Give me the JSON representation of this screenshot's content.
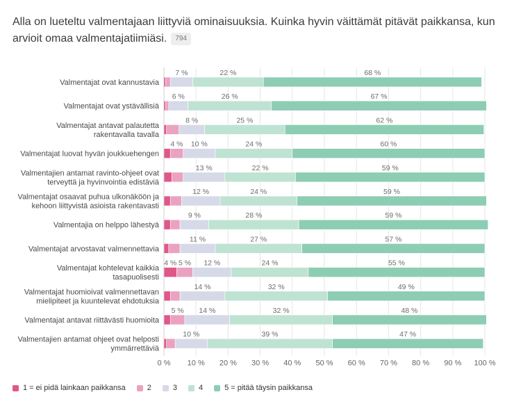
{
  "title": "Alla on lueteltu valmentajaan liittyviä ominaisuuksia. Kuinka hyvin väittämät pitävät paikkansa, kun arvioit omaa valmentajatiimiäsi.",
  "response_count": "794",
  "colors": [
    "#e0578a",
    "#eba2c0",
    "#d6dae8",
    "#bfe3d3",
    "#8dcdb3"
  ],
  "legend": [
    "1 = ei pidä lainkaan paikkansa",
    "2",
    "3",
    "4",
    "5 = pitää täysin paikkansa"
  ],
  "chart_data": {
    "type": "bar",
    "orientation": "horizontal",
    "stacked": "percent",
    "xlim": [
      0,
      100
    ],
    "x_ticks": [
      "0 %",
      "10 %",
      "20 %",
      "30 %",
      "40 %",
      "50 %",
      "60 %",
      "70 %",
      "80 %",
      "90 %",
      "100 %"
    ],
    "categories": [
      [
        "Valmentajat ovat kannustavia"
      ],
      [
        "Valmentajat ovat ystävällisiä"
      ],
      [
        "Valmentajat antavat palautetta",
        "rakentavalla tavalla"
      ],
      [
        "Valmentajat luovat hyvän joukkuehengen"
      ],
      [
        "Valmentajien antamat ravinto-ohjeet ovat",
        "terveyttä ja hyvinvointia edistäviä"
      ],
      [
        "Valmentajat osaavat puhua ulkonäköön ja",
        "kehoon liittyvistä asioista rakentavasti"
      ],
      [
        "Valmentajia on helppo lähestyä"
      ],
      [
        "Valmentajat arvostavat valmennettavia"
      ],
      [
        "Valmentajat kohtelevat kaikkia",
        "tasapuolisesti"
      ],
      [
        "Valmentajat huomioivat valmennettavan",
        "mielipiteet ja kuuntelevat ehdotuksia"
      ],
      [
        "Valmentajat antavat riittävästi huomioita"
      ],
      [
        "Valmentajien antamat ohjeet ovat helposti",
        "ymmärrettäviä"
      ]
    ],
    "series": [
      {
        "name": "1 = ei pidä lainkaan paikkansa",
        "values": [
          0.5,
          0.5,
          0.8,
          2.0,
          2.5,
          2.0,
          2.0,
          1.5,
          4.0,
          2.0,
          2.0,
          0.8
        ]
      },
      {
        "name": "2",
        "values": [
          1.5,
          1.0,
          3.9,
          4.0,
          3.5,
          3.5,
          3.0,
          3.5,
          5.0,
          3.0,
          4.5,
          2.7
        ]
      },
      {
        "name": "3",
        "values": [
          7,
          6,
          8,
          10,
          13,
          12,
          9,
          11,
          12,
          14,
          14,
          10
        ]
      },
      {
        "name": "4",
        "values": [
          22,
          26,
          25,
          24,
          22,
          24,
          28,
          27,
          24,
          32,
          32,
          39
        ]
      },
      {
        "name": "5 = pitää täysin paikkansa",
        "values": [
          68,
          67,
          62,
          60,
          59,
          59,
          59,
          57,
          55,
          49,
          48,
          47
        ]
      }
    ],
    "data_labels": [
      [
        "",
        "",
        "7 %",
        "22 %",
        "68 %"
      ],
      [
        "",
        "",
        "6 %",
        "26 %",
        "67 %"
      ],
      [
        "",
        "",
        "8 %",
        "25 %",
        "62 %"
      ],
      [
        "",
        "4 %",
        "10 %",
        "24 %",
        "60 %"
      ],
      [
        "",
        "",
        "13 %",
        "22 %",
        "59 %"
      ],
      [
        "",
        "",
        "12 %",
        "24 %",
        "59 %"
      ],
      [
        "",
        "",
        "9 %",
        "28 %",
        "59 %"
      ],
      [
        "",
        "",
        "11 %",
        "27 %",
        "57 %"
      ],
      [
        "4 %",
        "5 %",
        "12 %",
        "24 %",
        "55 %"
      ],
      [
        "",
        "",
        "14 %",
        "32 %",
        "49 %"
      ],
      [
        "",
        "5 %",
        "14 %",
        "32 %",
        "48 %"
      ],
      [
        "",
        "",
        "10 %",
        "39 %",
        "47 %"
      ]
    ]
  }
}
